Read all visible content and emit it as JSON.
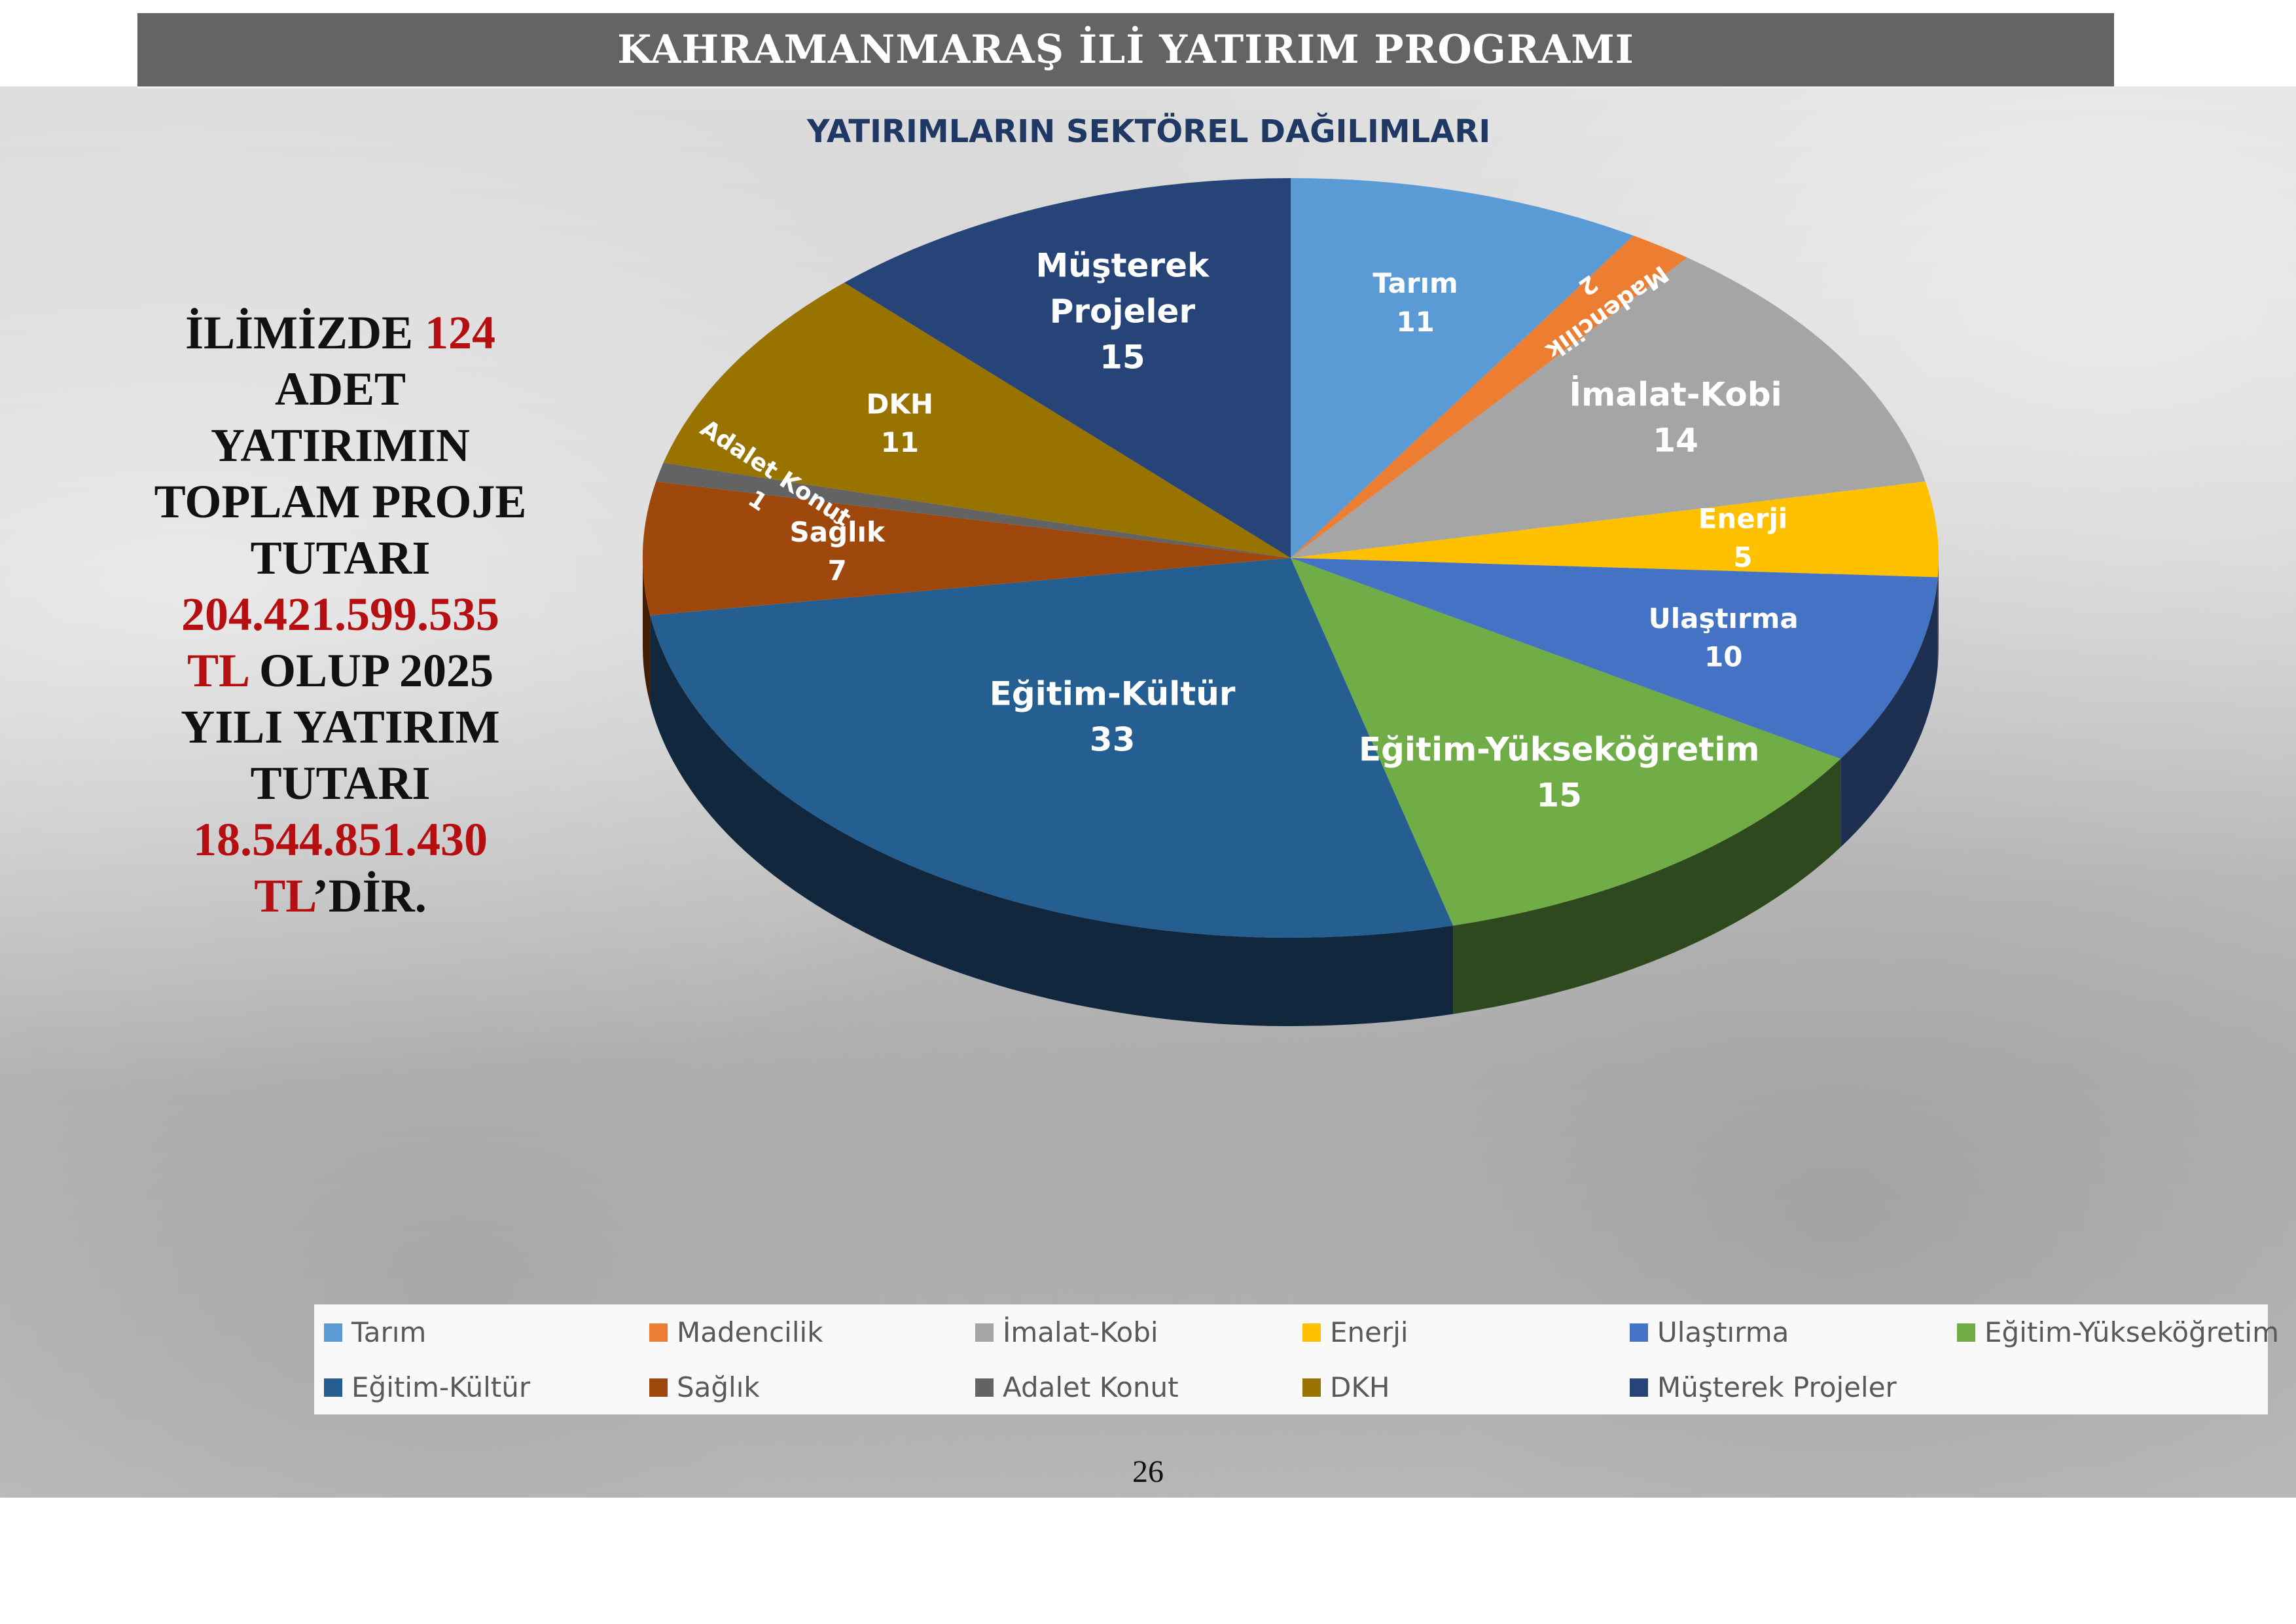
{
  "header": {
    "title": "KAHRAMANMARAŞ İLİ YATIRIM PROGRAMI"
  },
  "summary": {
    "line1_text": "İLİMİZDE ",
    "line1_count": "124",
    "line2": "ADET",
    "line3": "YATIRIMIN",
    "line4": "TOPLAM PROJE",
    "line5": "TUTARI",
    "total_amount": "204.421.599.535",
    "total_currency": "TL",
    "line7_rest": " OLUP 2025",
    "line8": "YILI YATIRIM",
    "line9": "TUTARI",
    "year_amount": "18.544.851.430",
    "year_currency": "TL",
    "ending": "’DİR."
  },
  "chart_data": {
    "type": "pie",
    "title": "YATIRIMLARIN SEKTÖREL DAĞILIMLARI",
    "categories": [
      "Tarım",
      "Madencilik",
      "İmalat-Kobi",
      "Enerji",
      "Ulaştırma",
      "Eğitim-Yükseköğretim",
      "Eğitim-Kültür",
      "Sağlık",
      "Adalet Konut",
      "DKH",
      "Müşterek Projeler"
    ],
    "values": [
      11,
      2,
      14,
      5,
      10,
      15,
      33,
      7,
      1,
      11,
      15
    ],
    "colors": [
      "#5b9bd5",
      "#ed7d31",
      "#a5a5a5",
      "#ffc000",
      "#4472c4",
      "#70ad47",
      "#255e91",
      "#9e480e",
      "#636363",
      "#997300",
      "#264478"
    ],
    "slice_labels": [
      [
        "Tarım"
      ],
      [
        "Madencilik"
      ],
      [
        "İmalat-Kobi"
      ],
      [
        "Enerji"
      ],
      [
        "Ulaştırma"
      ],
      [
        "Eğitim-Yükseköğretim"
      ],
      [
        "Eğitim-Kültür"
      ],
      [
        "Sağlık"
      ],
      [
        "Adalet Konut"
      ],
      [
        "DKH"
      ],
      [
        "Müşterek",
        "Projeler"
      ]
    ],
    "legend_position": "bottom",
    "style": "3d"
  },
  "footer": {
    "page_number": "26"
  }
}
